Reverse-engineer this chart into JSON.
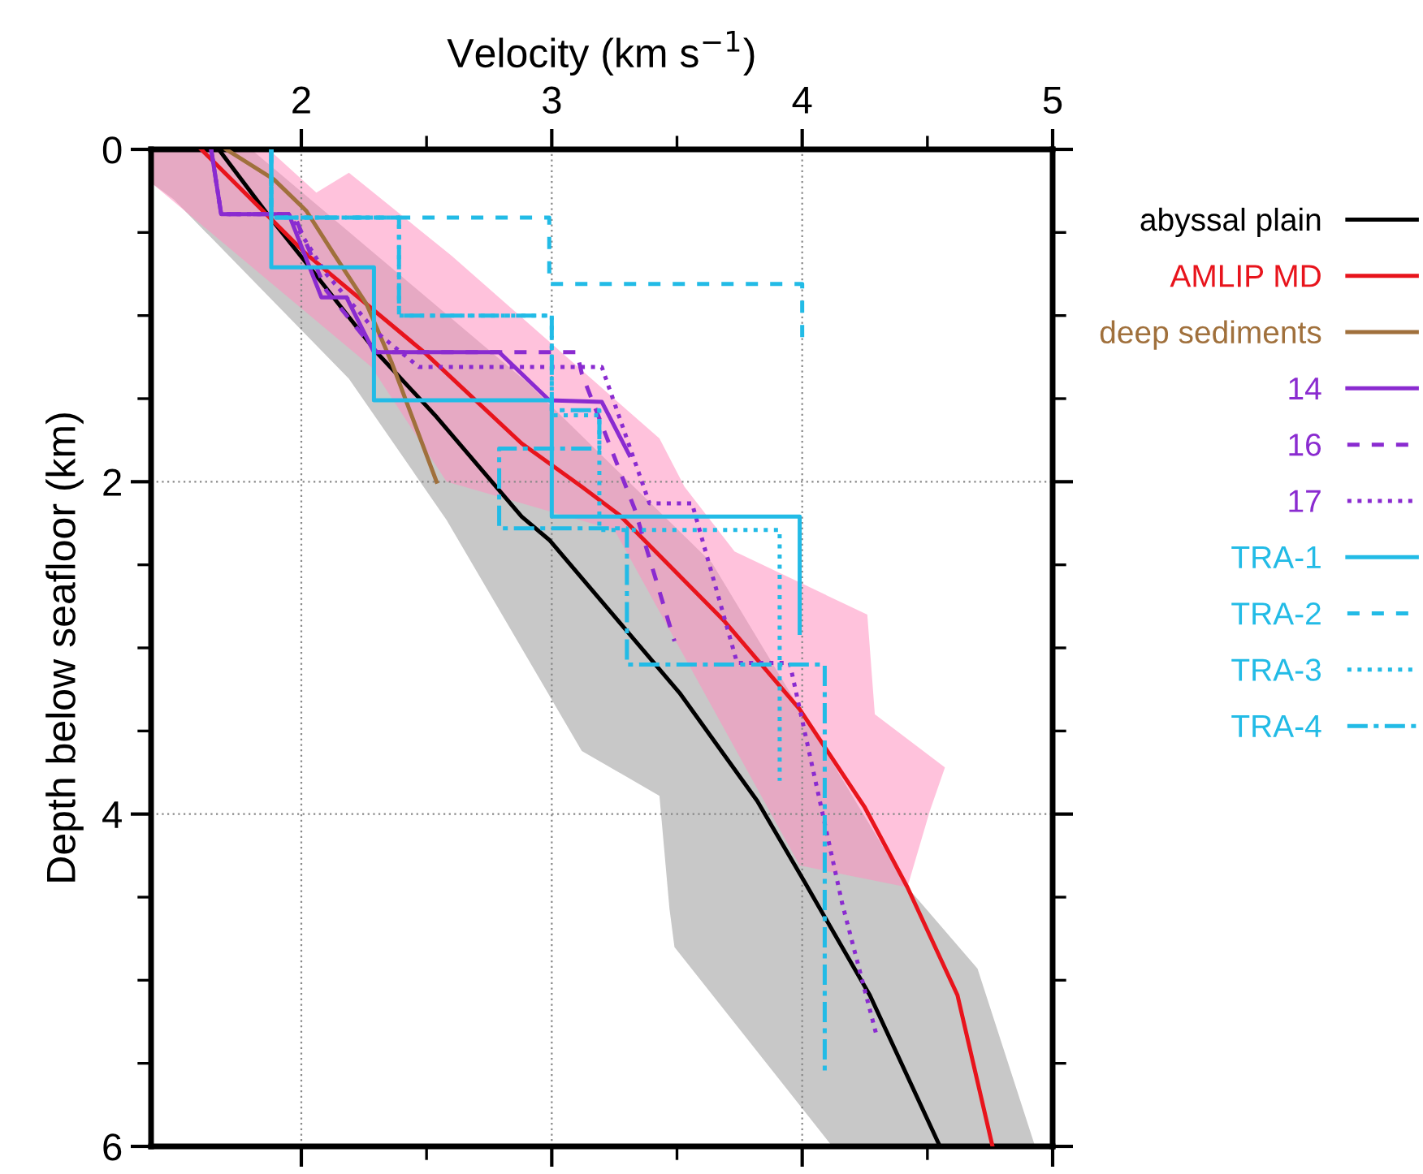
{
  "chart_data": {
    "type": "line",
    "xlabel": "Velocity (km s$^{−1}$)",
    "ylabel": "Depth below seafloor (km)",
    "xlim": [
      1.4,
      5
    ],
    "ylim": [
      6,
      0
    ],
    "xticks": [
      2,
      {
        "value": 2.5,
        "label": null
      },
      3,
      {
        "value": 3.5,
        "label": null
      },
      4,
      {
        "value": 4.5,
        "label": null
      },
      5
    ],
    "yticks": [
      0,
      {
        "value": 0.5,
        "label": null
      },
      {
        "value": 1,
        "label": null
      },
      {
        "value": 1.5,
        "label": null
      },
      2,
      {
        "value": 2.5,
        "label": null
      },
      {
        "value": 3,
        "label": null
      },
      {
        "value": 3.5,
        "label": null
      },
      4,
      {
        "value": 4.5,
        "label": null
      },
      {
        "value": 5,
        "label": null
      },
      {
        "value": 5.5,
        "label": null
      },
      6
    ],
    "grid": true,
    "legend": "right",
    "series": [
      {
        "type": "area",
        "color": "#c8c8c8",
        "x": [
          1.4,
          1.8,
          2.9,
          3.64,
          4.42,
          4.7,
          4.93,
          4.12,
          3.49,
          3.47,
          3.43,
          3.12,
          2.58,
          2.19,
          1.49,
          1.4
        ],
        "values": [
          0,
          0,
          1.4,
          2.49,
          4.44,
          4.93,
          6,
          6,
          4.8,
          4.57,
          3.89,
          3.62,
          2.23,
          1.38,
          0.3,
          0.2
        ]
      },
      {
        "type": "area",
        "color": "#ff8fbf",
        "x": [
          1.4,
          1.87,
          2.06,
          2.19,
          2.6,
          3.43,
          3.53,
          3.73,
          4.26,
          4.29,
          4.57,
          4.51,
          4.42,
          3.99,
          3.25,
          2.58,
          2.28,
          1.4
        ],
        "values": [
          0,
          0,
          0.26,
          0.14,
          0.64,
          1.74,
          2.03,
          2.42,
          2.8,
          3.4,
          3.72,
          3.98,
          4.44,
          4.31,
          2.29,
          2.0,
          1.31,
          0.2
        ]
      },
      {
        "name": "abyssal plain",
        "color": "#000000",
        "line_style": "solid",
        "x": [
          1.67,
          1.87,
          2.06,
          2.3,
          2.54,
          2.88,
          2.99,
          3.51,
          3.82,
          4.01,
          4.27,
          4.55
        ],
        "values": [
          0,
          0.4,
          0.76,
          1.22,
          1.61,
          2.21,
          2.35,
          3.27,
          3.92,
          4.41,
          5.09,
          6.0
        ]
      },
      {
        "name": "AMLIP MD",
        "color": "#e8141c",
        "line_style": "solid",
        "x": [
          1.6,
          2.02,
          2.49,
          2.88,
          3.12,
          3.27,
          3.69,
          3.99,
          4.25,
          4.42,
          4.62,
          4.76
        ],
        "values": [
          0,
          0.63,
          1.22,
          1.77,
          2.03,
          2.2,
          2.84,
          3.37,
          3.96,
          4.44,
          5.09,
          6.0
        ]
      },
      {
        "name": "deep sediments",
        "color": "#a0703c",
        "line_style": "solid",
        "x": [
          1.7,
          1.89,
          2.02,
          2.13,
          2.26,
          2.36,
          2.45,
          2.54
        ],
        "values": [
          0,
          0.18,
          0.37,
          0.63,
          0.93,
          1.28,
          1.64,
          2.0
        ]
      },
      {
        "name": "14",
        "color": "#8a2bd0",
        "line_style": "solid",
        "x": [
          1.64,
          1.68,
          1.95,
          2.08,
          2.18,
          2.29,
          2.79,
          2.99,
          3.2,
          3.31
        ],
        "values": [
          0,
          0.39,
          0.39,
          0.89,
          0.89,
          1.22,
          1.22,
          1.51,
          1.52,
          1.84
        ]
      },
      {
        "name": "16",
        "color": "#8a2bd0",
        "line_style": "dashed",
        "x": [
          1.64,
          1.68,
          1.97,
          2.1,
          2.3,
          3.1,
          3.12,
          3.33,
          3.49
        ],
        "values": [
          0,
          0.39,
          0.39,
          0.85,
          1.22,
          1.22,
          1.35,
          2.16,
          2.96
        ]
      },
      {
        "name": "17",
        "color": "#8a2bd0",
        "line_style": "dotted",
        "x": [
          1.64,
          1.68,
          1.95,
          2.1,
          2.3,
          2.47,
          3.2,
          3.39,
          3.56,
          3.74,
          3.95,
          4.16,
          4.3
        ],
        "values": [
          0,
          0.39,
          0.39,
          0.75,
          1.1,
          1.31,
          1.31,
          2.13,
          2.13,
          3.09,
          3.09,
          4.54,
          5.35
        ]
      },
      {
        "name": "TRA-1",
        "color": "#22bbe6",
        "line_style": "solid",
        "x": [
          1.88,
          1.88,
          2.29,
          2.29,
          3.0,
          3.0,
          3.99,
          3.99
        ],
        "values": [
          0,
          0.71,
          0.71,
          1.51,
          1.51,
          2.21,
          2.21,
          2.91
        ]
      },
      {
        "name": "TRA-2",
        "color": "#22bbe6",
        "line_style": "dashed",
        "x": [
          1.88,
          1.88,
          2.99,
          2.99,
          4.0,
          4.0
        ],
        "values": [
          0,
          0.41,
          0.41,
          0.81,
          0.81,
          1.17
        ]
      },
      {
        "name": "TRA-3",
        "color": "#22bbe6",
        "line_style": "dotted",
        "x": [
          1.88,
          1.88,
          2.39,
          2.39,
          3.0,
          3.0,
          3.19,
          3.19,
          3.91,
          3.91
        ],
        "values": [
          0,
          0.41,
          0.41,
          1.0,
          1.0,
          1.6,
          1.6,
          2.29,
          2.29,
          3.8
        ]
      },
      {
        "name": "TRA-4",
        "color": "#22bbe6",
        "line_style": "dashdot",
        "x": [
          1.88,
          1.88,
          2.39,
          2.39,
          3.0,
          3.0,
          3.19,
          3.19,
          2.79,
          2.79,
          3.3,
          3.3,
          4.09,
          4.09
        ],
        "values": [
          0,
          0.41,
          0.41,
          1.0,
          1.0,
          1.57,
          1.57,
          1.8,
          1.8,
          2.28,
          2.28,
          3.1,
          3.1,
          5.58
        ]
      }
    ]
  }
}
